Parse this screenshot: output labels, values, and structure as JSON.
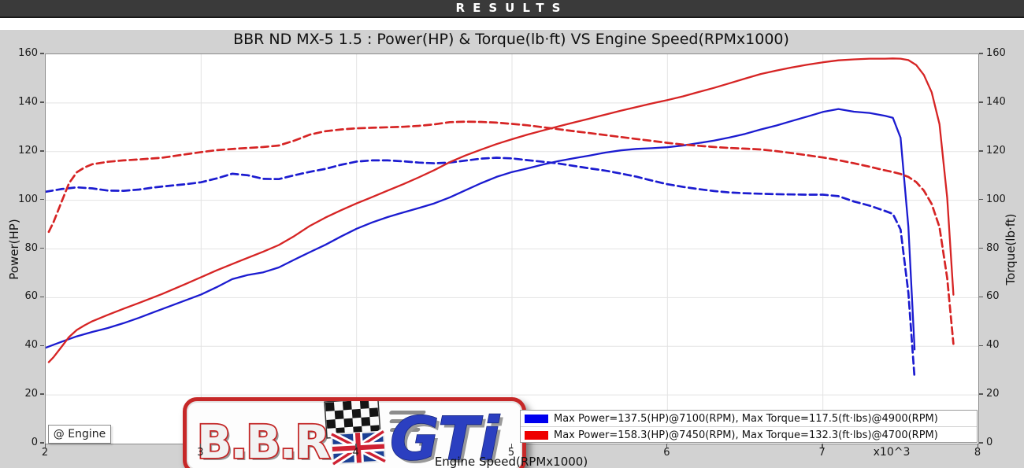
{
  "header": {
    "results_label": "RESULTS"
  },
  "logo": {
    "bbr_text": "B.B.R.",
    "gti_text": "GTi"
  },
  "chart_data": {
    "type": "line",
    "title": "BBR ND MX-5 1.5 : Power(HP) & Torque(lb·ft) VS Engine Speed(RPMx1000)",
    "xlabel": "Engine Speed(RPMx1000)",
    "ylabel_left": "Power(HP)",
    "ylabel_right": "Torque(lb·ft)",
    "x_multiplier_label": "x10^3",
    "annotation": "@ Engine",
    "xlim": [
      2,
      8
    ],
    "ylim": [
      0,
      160
    ],
    "x_ticks": [
      2,
      3,
      4,
      5,
      6,
      7,
      8
    ],
    "y_ticks": [
      0,
      20,
      40,
      60,
      80,
      100,
      120,
      140,
      160
    ],
    "grid": true,
    "legend_position": "lower right",
    "colors": {
      "grid": "#e3e3e3",
      "spine": "#8a8a8a",
      "blue": "#1b1bd0",
      "red": "#d62424",
      "legend_blue": "#0000ee",
      "legend_red": "#ee0000"
    },
    "legend": [
      {
        "color": "#0000ee",
        "label": "Max Power=137.5(HP)@7100(RPM), Max Torque=117.5(ft·lbs)@4900(RPM)"
      },
      {
        "color": "#ee0000",
        "label": "Max Power=158.3(HP)@7450(RPM), Max Torque=132.3(ft·lbs)@4700(RPM)"
      }
    ],
    "series": [
      {
        "name": "blue-power",
        "unit": "HP",
        "axis": "left",
        "style": "solid",
        "color": "#1b1bd0",
        "points": [
          [
            2.0,
            39.4
          ],
          [
            2.1,
            41.8
          ],
          [
            2.2,
            44.1
          ],
          [
            2.3,
            45.9
          ],
          [
            2.4,
            47.5
          ],
          [
            2.5,
            49.5
          ],
          [
            2.6,
            51.7
          ],
          [
            2.7,
            54.1
          ],
          [
            2.8,
            56.5
          ],
          [
            2.9,
            58.9
          ],
          [
            3.0,
            61.3
          ],
          [
            3.1,
            64.3
          ],
          [
            3.2,
            67.6
          ],
          [
            3.3,
            69.3
          ],
          [
            3.4,
            70.4
          ],
          [
            3.5,
            72.4
          ],
          [
            3.6,
            75.6
          ],
          [
            3.7,
            78.7
          ],
          [
            3.8,
            81.7
          ],
          [
            3.9,
            85.1
          ],
          [
            4.0,
            88.3
          ],
          [
            4.1,
            90.9
          ],
          [
            4.2,
            93.1
          ],
          [
            4.3,
            95.0
          ],
          [
            4.4,
            96.8
          ],
          [
            4.5,
            98.7
          ],
          [
            4.6,
            101.2
          ],
          [
            4.7,
            104.1
          ],
          [
            4.8,
            107.0
          ],
          [
            4.9,
            109.6
          ],
          [
            5.0,
            111.6
          ],
          [
            5.1,
            113.1
          ],
          [
            5.2,
            114.7
          ],
          [
            5.3,
            116.1
          ],
          [
            5.4,
            117.3
          ],
          [
            5.5,
            118.4
          ],
          [
            5.6,
            119.6
          ],
          [
            5.7,
            120.5
          ],
          [
            5.8,
            121.1
          ],
          [
            5.9,
            121.4
          ],
          [
            6.0,
            121.8
          ],
          [
            6.1,
            122.5
          ],
          [
            6.2,
            123.5
          ],
          [
            6.3,
            124.5
          ],
          [
            6.4,
            125.8
          ],
          [
            6.5,
            127.3
          ],
          [
            6.6,
            129.1
          ],
          [
            6.7,
            130.7
          ],
          [
            6.8,
            132.6
          ],
          [
            6.9,
            134.4
          ],
          [
            7.0,
            136.3
          ],
          [
            7.1,
            137.5
          ],
          [
            7.2,
            136.4
          ],
          [
            7.3,
            135.9
          ],
          [
            7.4,
            134.7
          ],
          [
            7.45,
            133.9
          ],
          [
            7.5,
            125.7
          ],
          [
            7.55,
            89.1
          ],
          [
            7.59,
            38.7
          ]
        ]
      },
      {
        "name": "blue-torque",
        "unit": "lb·ft",
        "axis": "right",
        "style": "dashed",
        "color": "#1b1bd0",
        "points": [
          [
            2.0,
            103.5
          ],
          [
            2.1,
            104.6
          ],
          [
            2.2,
            105.3
          ],
          [
            2.3,
            104.9
          ],
          [
            2.4,
            104.0
          ],
          [
            2.5,
            103.9
          ],
          [
            2.6,
            104.4
          ],
          [
            2.7,
            105.3
          ],
          [
            2.8,
            106.0
          ],
          [
            2.9,
            106.6
          ],
          [
            3.0,
            107.4
          ],
          [
            3.1,
            109.0
          ],
          [
            3.2,
            110.9
          ],
          [
            3.3,
            110.3
          ],
          [
            3.4,
            108.8
          ],
          [
            3.5,
            108.7
          ],
          [
            3.6,
            110.3
          ],
          [
            3.7,
            111.7
          ],
          [
            3.8,
            112.9
          ],
          [
            3.9,
            114.6
          ],
          [
            4.0,
            115.9
          ],
          [
            4.1,
            116.4
          ],
          [
            4.2,
            116.4
          ],
          [
            4.3,
            116.0
          ],
          [
            4.4,
            115.5
          ],
          [
            4.5,
            115.2
          ],
          [
            4.6,
            115.5
          ],
          [
            4.7,
            116.3
          ],
          [
            4.8,
            117.1
          ],
          [
            4.9,
            117.5
          ],
          [
            5.0,
            117.2
          ],
          [
            5.1,
            116.5
          ],
          [
            5.2,
            115.8
          ],
          [
            5.3,
            115.1
          ],
          [
            5.4,
            114.1
          ],
          [
            5.5,
            113.1
          ],
          [
            5.6,
            112.2
          ],
          [
            5.7,
            111.0
          ],
          [
            5.8,
            109.7
          ],
          [
            5.9,
            108.1
          ],
          [
            6.0,
            106.6
          ],
          [
            6.1,
            105.5
          ],
          [
            6.2,
            104.6
          ],
          [
            6.3,
            103.8
          ],
          [
            6.4,
            103.2
          ],
          [
            6.5,
            102.9
          ],
          [
            6.6,
            102.7
          ],
          [
            6.7,
            102.5
          ],
          [
            6.8,
            102.4
          ],
          [
            6.9,
            102.3
          ],
          [
            7.0,
            102.3
          ],
          [
            7.1,
            101.7
          ],
          [
            7.2,
            99.5
          ],
          [
            7.3,
            97.8
          ],
          [
            7.4,
            95.6
          ],
          [
            7.45,
            94.4
          ],
          [
            7.5,
            88.0
          ],
          [
            7.55,
            62.0
          ],
          [
            7.59,
            26.8
          ]
        ]
      },
      {
        "name": "red-power",
        "unit": "HP",
        "axis": "left",
        "style": "solid",
        "color": "#d62424",
        "points": [
          [
            2.02,
            33.5
          ],
          [
            2.05,
            35.5
          ],
          [
            2.1,
            39.6
          ],
          [
            2.15,
            43.8
          ],
          [
            2.2,
            46.7
          ],
          [
            2.25,
            48.6
          ],
          [
            2.3,
            50.3
          ],
          [
            2.4,
            52.9
          ],
          [
            2.5,
            55.4
          ],
          [
            2.6,
            57.8
          ],
          [
            2.75,
            61.5
          ],
          [
            2.9,
            65.6
          ],
          [
            3.0,
            68.4
          ],
          [
            3.1,
            71.2
          ],
          [
            3.25,
            75.1
          ],
          [
            3.4,
            78.9
          ],
          [
            3.5,
            81.6
          ],
          [
            3.6,
            85.3
          ],
          [
            3.7,
            89.5
          ],
          [
            3.8,
            92.9
          ],
          [
            3.9,
            95.9
          ],
          [
            4.0,
            98.7
          ],
          [
            4.1,
            101.3
          ],
          [
            4.2,
            104.0
          ],
          [
            4.3,
            106.6
          ],
          [
            4.4,
            109.4
          ],
          [
            4.5,
            112.4
          ],
          [
            4.6,
            115.7
          ],
          [
            4.7,
            118.4
          ],
          [
            4.8,
            120.8
          ],
          [
            4.9,
            123.1
          ],
          [
            5.0,
            125.1
          ],
          [
            5.1,
            127.0
          ],
          [
            5.2,
            128.7
          ],
          [
            5.3,
            130.4
          ],
          [
            5.4,
            132.0
          ],
          [
            5.5,
            133.6
          ],
          [
            5.6,
            135.2
          ],
          [
            5.7,
            136.8
          ],
          [
            5.8,
            138.3
          ],
          [
            5.9,
            139.8
          ],
          [
            6.0,
            141.2
          ],
          [
            6.1,
            142.7
          ],
          [
            6.2,
            144.5
          ],
          [
            6.3,
            146.2
          ],
          [
            6.4,
            148.1
          ],
          [
            6.5,
            150.0
          ],
          [
            6.6,
            151.9
          ],
          [
            6.7,
            153.3
          ],
          [
            6.8,
            154.6
          ],
          [
            6.9,
            155.7
          ],
          [
            7.0,
            156.7
          ],
          [
            7.1,
            157.5
          ],
          [
            7.2,
            157.9
          ],
          [
            7.3,
            158.2
          ],
          [
            7.4,
            158.2
          ],
          [
            7.45,
            158.3
          ],
          [
            7.5,
            158.2
          ],
          [
            7.55,
            157.6
          ],
          [
            7.6,
            155.6
          ],
          [
            7.65,
            151.5
          ],
          [
            7.7,
            144.4
          ],
          [
            7.75,
            131.3
          ],
          [
            7.8,
            101.0
          ],
          [
            7.84,
            61.2
          ]
        ]
      },
      {
        "name": "red-torque",
        "unit": "lb·ft",
        "axis": "right",
        "style": "dashed",
        "color": "#d62424",
        "points": [
          [
            2.02,
            87.0
          ],
          [
            2.05,
            91.0
          ],
          [
            2.1,
            99.0
          ],
          [
            2.15,
            107.0
          ],
          [
            2.2,
            111.5
          ],
          [
            2.25,
            113.5
          ],
          [
            2.3,
            114.8
          ],
          [
            2.4,
            115.8
          ],
          [
            2.5,
            116.4
          ],
          [
            2.6,
            116.8
          ],
          [
            2.75,
            117.5
          ],
          [
            2.9,
            118.9
          ],
          [
            3.0,
            119.8
          ],
          [
            3.1,
            120.6
          ],
          [
            3.25,
            121.3
          ],
          [
            3.4,
            121.9
          ],
          [
            3.5,
            122.5
          ],
          [
            3.6,
            124.5
          ],
          [
            3.7,
            127.0
          ],
          [
            3.8,
            128.4
          ],
          [
            3.9,
            129.1
          ],
          [
            4.0,
            129.6
          ],
          [
            4.1,
            129.8
          ],
          [
            4.2,
            130.0
          ],
          [
            4.3,
            130.2
          ],
          [
            4.4,
            130.6
          ],
          [
            4.5,
            131.2
          ],
          [
            4.6,
            132.1
          ],
          [
            4.7,
            132.3
          ],
          [
            4.8,
            132.2
          ],
          [
            4.9,
            131.9
          ],
          [
            5.0,
            131.4
          ],
          [
            5.1,
            130.8
          ],
          [
            5.2,
            130.0
          ],
          [
            5.3,
            129.2
          ],
          [
            5.4,
            128.4
          ],
          [
            5.5,
            127.6
          ],
          [
            5.6,
            126.8
          ],
          [
            5.7,
            126.0
          ],
          [
            5.8,
            125.2
          ],
          [
            5.9,
            124.4
          ],
          [
            6.0,
            123.6
          ],
          [
            6.1,
            122.9
          ],
          [
            6.2,
            122.4
          ],
          [
            6.3,
            121.9
          ],
          [
            6.4,
            121.5
          ],
          [
            6.5,
            121.2
          ],
          [
            6.6,
            120.9
          ],
          [
            6.7,
            120.2
          ],
          [
            6.8,
            119.4
          ],
          [
            6.9,
            118.5
          ],
          [
            7.0,
            117.6
          ],
          [
            7.1,
            116.5
          ],
          [
            7.2,
            115.2
          ],
          [
            7.3,
            113.8
          ],
          [
            7.4,
            112.3
          ],
          [
            7.45,
            111.6
          ],
          [
            7.5,
            110.8
          ],
          [
            7.55,
            109.6
          ],
          [
            7.6,
            107.5
          ],
          [
            7.65,
            104.0
          ],
          [
            7.7,
            98.5
          ],
          [
            7.75,
            89.0
          ],
          [
            7.8,
            68.0
          ],
          [
            7.84,
            41.0
          ]
        ]
      }
    ]
  }
}
